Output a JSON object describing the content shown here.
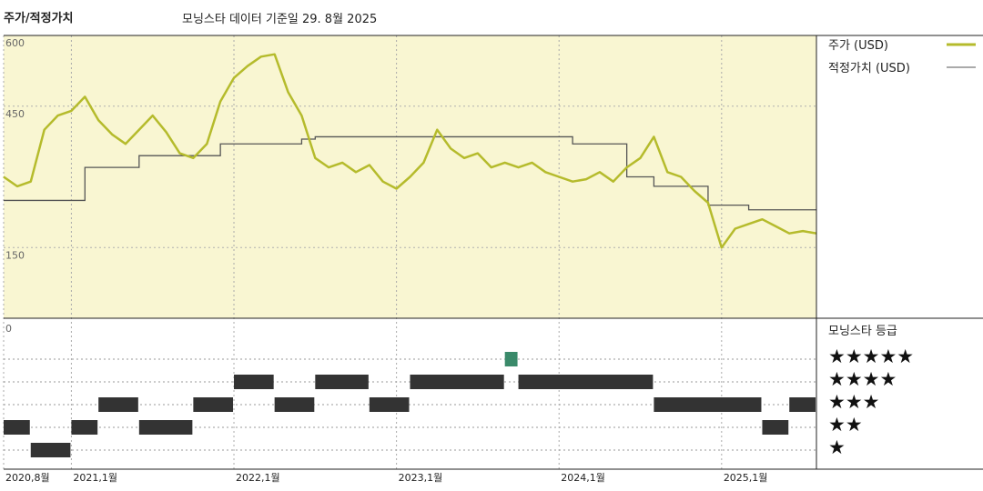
{
  "header": {
    "title": "주가/적정가치",
    "subtitle": "모닝스타 데이터 기준일 29. 8월 2025"
  },
  "colors": {
    "price_line": "#b5bb2c",
    "fair_value_line": "#555555",
    "plot_background": "#f9f6d2",
    "rating_bar": "#333333",
    "rating_highlight": "#3a8a6a"
  },
  "legend": {
    "price_label": "주가 (USD)",
    "fair_value_label": "적정가치 (USD)",
    "rating_title": "모닝스타 등급"
  },
  "star_labels": [
    "★★★★★",
    "★★★★",
    "★★★",
    "★★",
    "★"
  ],
  "chart_data": {
    "type": "line",
    "x_range": [
      "2020-08",
      "2025-08"
    ],
    "ylim": [
      0,
      600
    ],
    "yticks": [
      "0",
      "150",
      "450",
      "600"
    ],
    "xticks": [
      "2020,8월",
      "2021,1월",
      "2022,1월",
      "2023,1월",
      "2024,1월",
      "2025,1월"
    ],
    "grid": true,
    "legend_position": "right",
    "series": [
      {
        "name": "주가 (USD)",
        "points": [
          [
            "2020-08",
            300
          ],
          [
            "2020-09",
            280
          ],
          [
            "2020-10",
            290
          ],
          [
            "2020-11",
            400
          ],
          [
            "2020-12",
            430
          ],
          [
            "2021-01",
            440
          ],
          [
            "2021-02",
            470
          ],
          [
            "2021-03",
            420
          ],
          [
            "2021-04",
            390
          ],
          [
            "2021-05",
            370
          ],
          [
            "2021-06",
            400
          ],
          [
            "2021-07",
            430
          ],
          [
            "2021-08",
            395
          ],
          [
            "2021-09",
            350
          ],
          [
            "2021-10",
            340
          ],
          [
            "2021-11",
            370
          ],
          [
            "2021-12",
            460
          ],
          [
            "2022-01",
            510
          ],
          [
            "2022-02",
            535
          ],
          [
            "2022-03",
            555
          ],
          [
            "2022-04",
            560
          ],
          [
            "2022-05",
            480
          ],
          [
            "2022-06",
            430
          ],
          [
            "2022-07",
            340
          ],
          [
            "2022-08",
            320
          ],
          [
            "2022-09",
            330
          ],
          [
            "2022-10",
            310
          ],
          [
            "2022-11",
            325
          ],
          [
            "2022-12",
            290
          ],
          [
            "2023-01",
            275
          ],
          [
            "2023-02",
            300
          ],
          [
            "2023-03",
            330
          ],
          [
            "2023-04",
            400
          ],
          [
            "2023-05",
            360
          ],
          [
            "2023-06",
            340
          ],
          [
            "2023-07",
            350
          ],
          [
            "2023-08",
            320
          ],
          [
            "2023-09",
            330
          ],
          [
            "2023-10",
            320
          ],
          [
            "2023-11",
            330
          ],
          [
            "2023-12",
            310
          ],
          [
            "2024-01",
            300
          ],
          [
            "2024-02",
            290
          ],
          [
            "2024-03",
            295
          ],
          [
            "2024-04",
            310
          ],
          [
            "2024-05",
            290
          ],
          [
            "2024-06",
            320
          ],
          [
            "2024-07",
            340
          ],
          [
            "2024-08",
            385
          ],
          [
            "2024-09",
            310
          ],
          [
            "2024-10",
            300
          ],
          [
            "2024-11",
            270
          ],
          [
            "2024-12",
            245
          ],
          [
            "2025-01",
            150
          ],
          [
            "2025-02",
            190
          ],
          [
            "2025-03",
            200
          ],
          [
            "2025-04",
            210
          ],
          [
            "2025-05",
            195
          ],
          [
            "2025-06",
            180
          ],
          [
            "2025-07",
            185
          ],
          [
            "2025-08",
            180
          ]
        ]
      },
      {
        "name": "적정가치 (USD)",
        "step_points": [
          [
            "2020-08",
            250
          ],
          [
            "2021-02",
            320
          ],
          [
            "2021-06",
            345
          ],
          [
            "2021-12",
            370
          ],
          [
            "2022-06",
            380
          ],
          [
            "2022-07",
            385
          ],
          [
            "2023-01",
            385
          ],
          [
            "2023-07",
            385
          ],
          [
            "2024-02",
            370
          ],
          [
            "2024-06",
            300
          ],
          [
            "2024-08",
            280
          ],
          [
            "2024-12",
            240
          ],
          [
            "2025-03",
            230
          ],
          [
            "2025-08",
            230
          ]
        ]
      }
    ],
    "rating_history": [
      {
        "start": "2020-08",
        "end": "2020-10",
        "stars": 2
      },
      {
        "start": "2020-10",
        "end": "2021-01",
        "stars": 1
      },
      {
        "start": "2021-01",
        "end": "2021-03",
        "stars": 2
      },
      {
        "start": "2021-03",
        "end": "2021-06",
        "stars": 3
      },
      {
        "start": "2021-06",
        "end": "2021-10",
        "stars": 2
      },
      {
        "start": "2021-10",
        "end": "2022-01",
        "stars": 3
      },
      {
        "start": "2022-01",
        "end": "2022-04",
        "stars": 4
      },
      {
        "start": "2022-04",
        "end": "2022-07",
        "stars": 3
      },
      {
        "start": "2022-07",
        "end": "2022-11",
        "stars": 4
      },
      {
        "start": "2022-11",
        "end": "2023-02",
        "stars": 3
      },
      {
        "start": "2023-02",
        "end": "2023-09",
        "stars": 4
      },
      {
        "start": "2023-09",
        "end": "2023-10",
        "stars": 5
      },
      {
        "start": "2023-10",
        "end": "2024-08",
        "stars": 4
      },
      {
        "start": "2024-08",
        "end": "2025-04",
        "stars": 3
      },
      {
        "start": "2025-04",
        "end": "2025-06",
        "stars": 2
      },
      {
        "start": "2025-06",
        "end": "2025-08",
        "stars": 3
      }
    ]
  }
}
